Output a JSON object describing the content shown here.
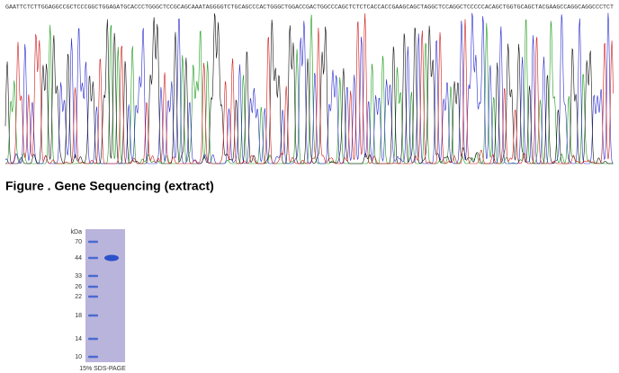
{
  "sequence": {
    "read": "GAATTCTCTTGGAGGCCGCTCCCGGCTGGAGATGCACCCTGGGCTCCGCAGCAAATAGGGGTCTGCAGCCCACTGGGCTGGACCGACTGGCCCAGCTCTCTCACCACCGAAGCAGCTAGGCTCCAGGCTCCCCCACAGCTGGTGCAGCTACGAAGCCAGGCAGGCCCTCT",
    "caption": "Figure . Gene Sequencing (extract)"
  },
  "gel": {
    "unit_label": "kDa",
    "markers": [
      "70",
      "44",
      "33",
      "26",
      "22",
      "18",
      "14",
      "10"
    ],
    "caption": "15% SDS-PAGE"
  }
}
